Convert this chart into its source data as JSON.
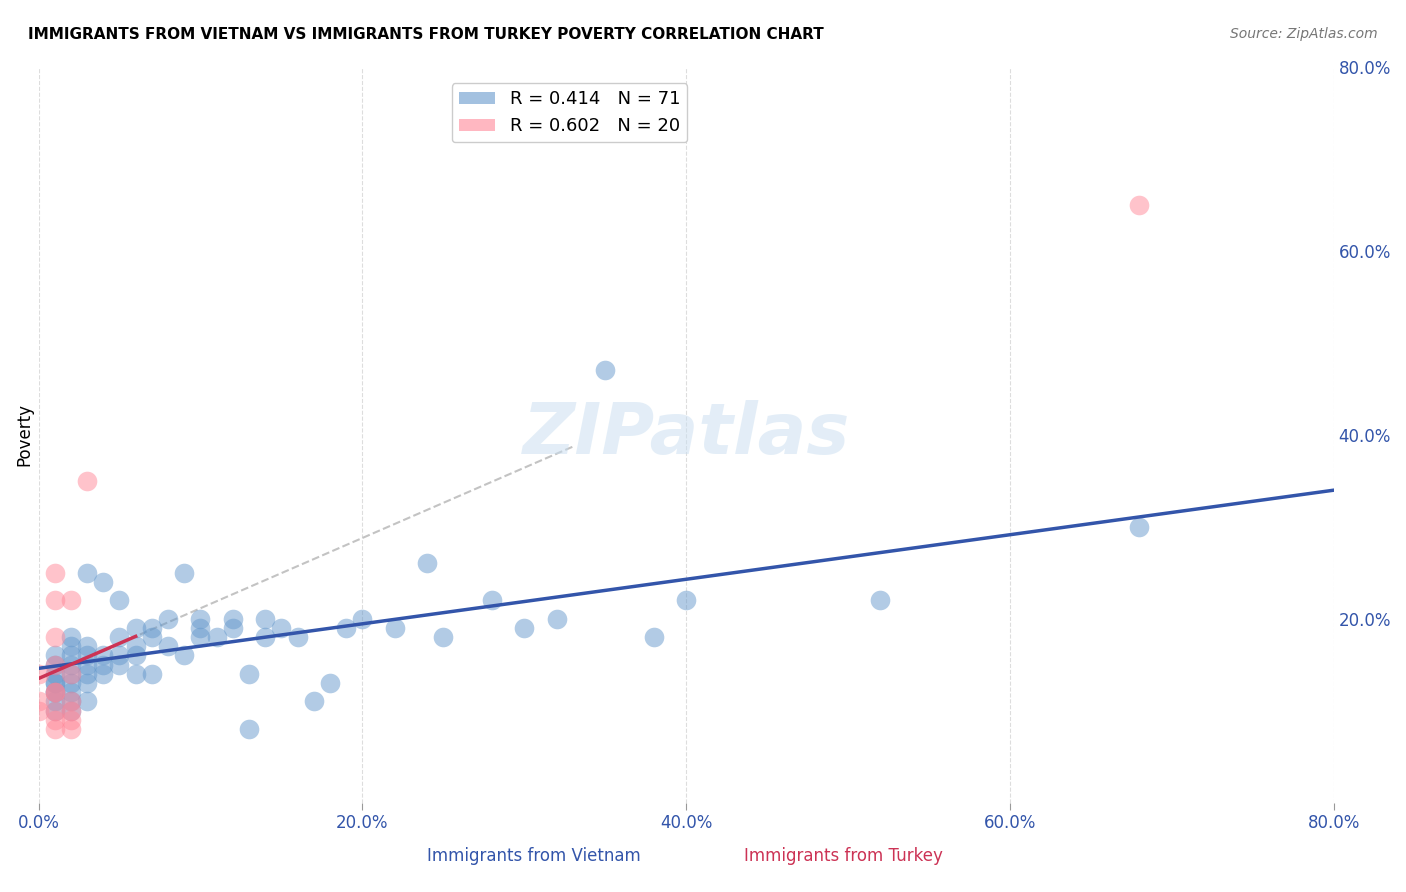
{
  "title": "IMMIGRANTS FROM VIETNAM VS IMMIGRANTS FROM TURKEY POVERTY CORRELATION CHART",
  "source": "Source: ZipAtlas.com",
  "xlabel_blue": "Immigrants from Vietnam",
  "xlabel_pink": "Immigrants from Turkey",
  "ylabel": "Poverty",
  "xlim": [
    0.0,
    0.8
  ],
  "ylim": [
    0.0,
    0.8
  ],
  "xticks": [
    0.0,
    0.2,
    0.4,
    0.6,
    0.8
  ],
  "yticks_left": [],
  "yticks_right": [
    0.8,
    0.6,
    0.4,
    0.2
  ],
  "grid_color": "#dddddd",
  "background_color": "#ffffff",
  "blue_color": "#6699cc",
  "pink_color": "#ff8899",
  "blue_line_color": "#3355aa",
  "pink_line_color": "#cc3355",
  "legend_R_blue": "R = 0.414",
  "legend_N_blue": "N = 71",
  "legend_R_pink": "R = 0.602",
  "legend_N_pink": "N = 20",
  "watermark": "ZIPatlas",
  "vietnam_x": [
    0.01,
    0.01,
    0.01,
    0.01,
    0.01,
    0.01,
    0.01,
    0.01,
    0.01,
    0.02,
    0.02,
    0.02,
    0.02,
    0.02,
    0.02,
    0.02,
    0.02,
    0.02,
    0.03,
    0.03,
    0.03,
    0.03,
    0.03,
    0.03,
    0.03,
    0.04,
    0.04,
    0.04,
    0.04,
    0.05,
    0.05,
    0.05,
    0.05,
    0.06,
    0.06,
    0.06,
    0.06,
    0.07,
    0.07,
    0.07,
    0.08,
    0.08,
    0.09,
    0.09,
    0.1,
    0.1,
    0.1,
    0.11,
    0.12,
    0.12,
    0.13,
    0.13,
    0.14,
    0.14,
    0.15,
    0.16,
    0.17,
    0.18,
    0.19,
    0.2,
    0.22,
    0.24,
    0.25,
    0.28,
    0.3,
    0.32,
    0.35,
    0.38,
    0.4,
    0.52,
    0.68
  ],
  "vietnam_y": [
    0.12,
    0.13,
    0.14,
    0.13,
    0.15,
    0.12,
    0.11,
    0.1,
    0.16,
    0.14,
    0.15,
    0.13,
    0.12,
    0.16,
    0.17,
    0.11,
    0.1,
    0.18,
    0.15,
    0.16,
    0.14,
    0.25,
    0.13,
    0.11,
    0.17,
    0.15,
    0.16,
    0.24,
    0.14,
    0.16,
    0.18,
    0.22,
    0.15,
    0.17,
    0.16,
    0.19,
    0.14,
    0.18,
    0.19,
    0.14,
    0.2,
    0.17,
    0.16,
    0.25,
    0.18,
    0.2,
    0.19,
    0.18,
    0.2,
    0.19,
    0.08,
    0.14,
    0.18,
    0.2,
    0.19,
    0.18,
    0.11,
    0.13,
    0.19,
    0.2,
    0.19,
    0.26,
    0.18,
    0.22,
    0.19,
    0.2,
    0.47,
    0.18,
    0.22,
    0.22,
    0.3
  ],
  "turkey_x": [
    0.0,
    0.0,
    0.0,
    0.01,
    0.01,
    0.01,
    0.01,
    0.01,
    0.01,
    0.01,
    0.01,
    0.01,
    0.02,
    0.02,
    0.02,
    0.02,
    0.02,
    0.02,
    0.03,
    0.68
  ],
  "turkey_y": [
    0.14,
    0.1,
    0.11,
    0.15,
    0.12,
    0.1,
    0.09,
    0.18,
    0.08,
    0.25,
    0.22,
    0.12,
    0.14,
    0.11,
    0.09,
    0.22,
    0.08,
    0.1,
    0.35,
    0.65
  ]
}
